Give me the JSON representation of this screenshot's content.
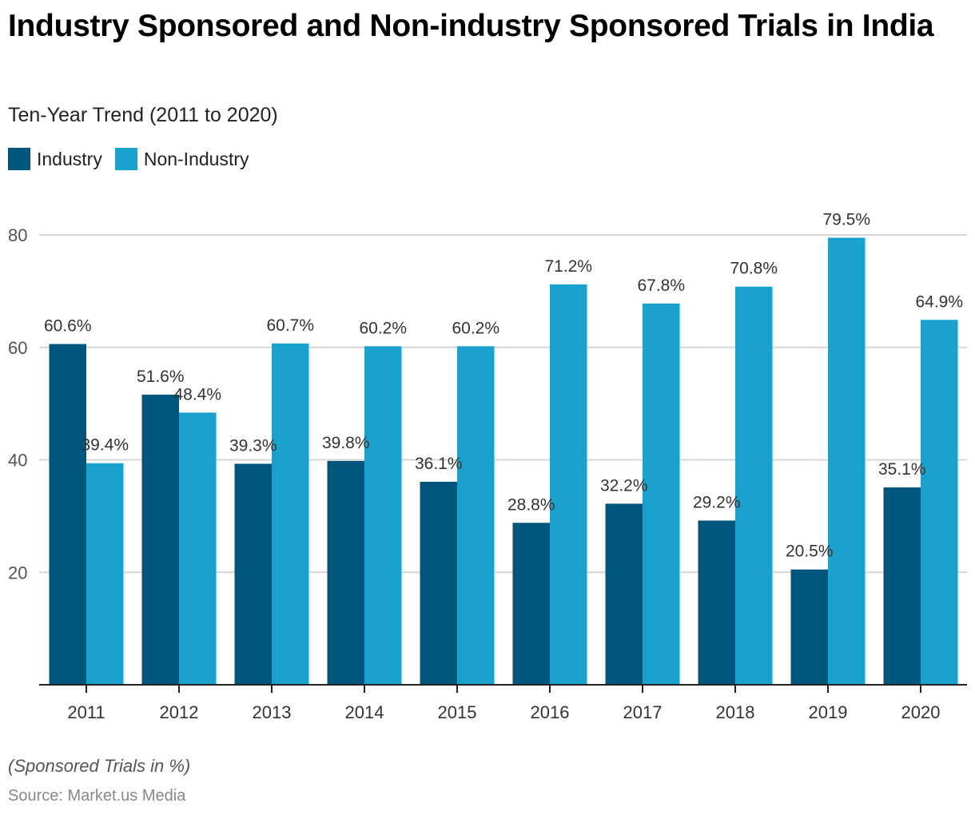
{
  "header": {
    "title": "Industry Sponsored and Non-industry Sponsored Trials in India",
    "subtitle": "Ten-Year Trend (2011 to 2020)"
  },
  "legend": [
    {
      "label": "Industry",
      "color": "#00557c"
    },
    {
      "label": "Non-Industry",
      "color": "#1aa1ce"
    }
  ],
  "footer": {
    "note": "(Sponsored Trials in %)",
    "source": "Source: Market.us Media"
  },
  "chart_data": {
    "type": "bar",
    "title": "Industry Sponsored and Non-industry Sponsored Trials in India",
    "subtitle": "Ten-Year Trend (2011 to 2020)",
    "xlabel": "",
    "ylabel": "Sponsored Trials in %",
    "categories": [
      "2011",
      "2012",
      "2013",
      "2014",
      "2015",
      "2016",
      "2017",
      "2018",
      "2019",
      "2020"
    ],
    "series": [
      {
        "name": "Industry",
        "color": "#00557c",
        "values": [
          60.6,
          51.6,
          39.3,
          39.8,
          36.1,
          28.8,
          32.2,
          29.2,
          20.5,
          35.1
        ],
        "labels": [
          "60.6%",
          "51.6%",
          "39.3%",
          "39.8%",
          "36.1%",
          "28.8%",
          "32.2%",
          "29.2%",
          "20.5%",
          "35.1%"
        ]
      },
      {
        "name": "Non-Industry",
        "color": "#1aa1ce",
        "values": [
          39.4,
          48.4,
          60.7,
          60.2,
          60.2,
          71.2,
          67.8,
          70.8,
          79.5,
          64.9
        ],
        "labels": [
          "39.4%",
          "48.4%",
          "60.7%",
          "60.2%",
          "60.2%",
          "71.2%",
          "67.8%",
          "70.8%",
          "79.5%",
          "64.9%"
        ]
      }
    ],
    "yticks": [
      20,
      40,
      60,
      80
    ],
    "ylim": [
      0,
      80
    ],
    "grid": true,
    "legend_position": "top-left"
  }
}
